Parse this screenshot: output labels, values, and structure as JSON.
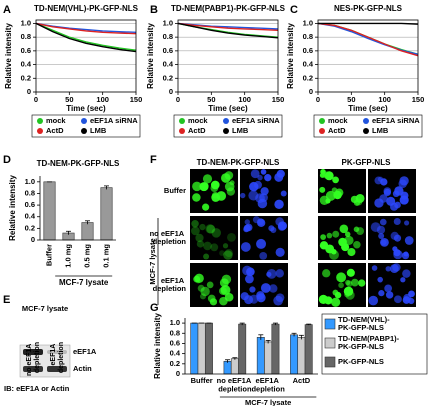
{
  "chart_data": [
    {
      "type": "line",
      "panel": "A",
      "title": "TD-NEM(VHL)-PK-GFP-NLS",
      "xlabel": "Time (sec)",
      "ylabel": "Relative intensity",
      "x": [
        0,
        25,
        50,
        75,
        100,
        125,
        150
      ],
      "xlim": [
        0,
        150
      ],
      "xticks": [
        0,
        50,
        100,
        150
      ],
      "ylim": [
        0,
        1.05
      ],
      "yticks": [
        0,
        0.2,
        0.4,
        0.6,
        0.8,
        {
          "value": 1,
          "label": "1.0"
        }
      ],
      "grid": true,
      "legend": "bottom",
      "series": [
        {
          "name": "mock",
          "color": "#22c422",
          "values": [
            1.0,
            0.9,
            0.8,
            0.73,
            0.68,
            0.64,
            0.61
          ]
        },
        {
          "name": "eEF1A siRNA",
          "color": "#2255dd",
          "values": [
            1.0,
            0.96,
            0.93,
            0.91,
            0.89,
            0.88,
            0.87
          ]
        },
        {
          "name": "ActD",
          "color": "#dd2222",
          "values": [
            1.0,
            0.95,
            0.92,
            0.89,
            0.87,
            0.86,
            0.85
          ]
        },
        {
          "name": "LMB",
          "color": "#000000",
          "values": [
            1.0,
            0.88,
            0.78,
            0.71,
            0.66,
            0.62,
            0.59
          ]
        }
      ]
    },
    {
      "type": "line",
      "panel": "B",
      "title": "TD-NEM(PABP1)-PK-GFP-NLS",
      "xlabel": "Time (sec)",
      "ylabel": "Relative intensity",
      "x": [
        0,
        25,
        50,
        75,
        100,
        125,
        150
      ],
      "xlim": [
        0,
        150
      ],
      "xticks": [
        0,
        50,
        100,
        150
      ],
      "ylim": [
        0,
        1.05
      ],
      "yticks": [
        0,
        0.2,
        0.4,
        0.6,
        0.8,
        {
          "value": 1,
          "label": "1.0"
        }
      ],
      "grid": true,
      "legend": "bottom",
      "series": [
        {
          "name": "mock",
          "color": "#22c422",
          "values": [
            1.0,
            0.95,
            0.91,
            0.87,
            0.84,
            0.82,
            0.8
          ]
        },
        {
          "name": "eEF1A siRNA",
          "color": "#2255dd",
          "values": [
            1.0,
            0.98,
            0.96,
            0.95,
            0.94,
            0.93,
            0.92
          ]
        },
        {
          "name": "ActD",
          "color": "#dd2222",
          "values": [
            1.0,
            0.97,
            0.95,
            0.93,
            0.92,
            0.91,
            0.9
          ]
        },
        {
          "name": "LMB",
          "color": "#000000",
          "values": [
            1.0,
            0.95,
            0.9,
            0.86,
            0.83,
            0.81,
            0.79
          ]
        }
      ]
    },
    {
      "type": "line",
      "panel": "C",
      "title": "NES-PK-GFP-NLS",
      "xlabel": "Time (sec)",
      "ylabel": "Relative intensity",
      "x": [
        0,
        25,
        50,
        75,
        100,
        125,
        150
      ],
      "xlim": [
        0,
        150
      ],
      "xticks": [
        0,
        50,
        100,
        150
      ],
      "ylim": [
        0,
        1.05
      ],
      "yticks": [
        0,
        0.2,
        0.4,
        0.6,
        0.8,
        {
          "value": 1,
          "label": "1.0"
        }
      ],
      "grid": true,
      "legend": "bottom",
      "series": [
        {
          "name": "mock",
          "color": "#22c422",
          "values": [
            1.0,
            0.97,
            0.9,
            0.8,
            0.7,
            0.62,
            0.55
          ]
        },
        {
          "name": "eEF1A siRNA",
          "color": "#2255dd",
          "values": [
            1.0,
            0.96,
            0.88,
            0.78,
            0.69,
            0.61,
            0.55
          ]
        },
        {
          "name": "ActD",
          "color": "#dd2222",
          "values": [
            1.0,
            0.97,
            0.9,
            0.8,
            0.7,
            0.6,
            0.53
          ]
        },
        {
          "name": "LMB",
          "color": "#000000",
          "values": [
            1.0,
            1.0,
            1.0,
            1.0,
            1.0,
            1.0,
            0.99
          ]
        }
      ]
    },
    {
      "type": "bar",
      "panel": "D",
      "title": "TD-NEM-PK-GFP-NLS",
      "ylabel": "Relative intensity",
      "categories": [
        "Buffer",
        "1.0 mg",
        "0.5 mg",
        "0.1 mg"
      ],
      "values": [
        1.0,
        0.12,
        0.3,
        0.9
      ],
      "errors": [
        0,
        0.03,
        0.03,
        0.03
      ],
      "color": "#999999",
      "group_label": "MCF-7 lysate",
      "ylim": [
        0,
        1.1
      ],
      "yticks": [
        0,
        0.2,
        0.4,
        0.6,
        0.8,
        {
          "value": 1,
          "label": "1.0"
        }
      ]
    },
    {
      "type": "grouped_bar",
      "panel": "G",
      "ylabel": "Relative intensity",
      "categories": [
        "Buffer",
        "no eEF1A depletion",
        "eEF1A depletion",
        "ActD"
      ],
      "group_label": "MCF-7 lysate",
      "legend": "right",
      "ylim": [
        0,
        1.1
      ],
      "yticks": [
        0,
        0.2,
        0.4,
        0.6,
        0.8,
        {
          "value": 1,
          "label": "1.0"
        }
      ],
      "series": [
        {
          "name": "TD-NEM(VHL)-PK-GFP-NLS",
          "color": "#3399ff",
          "values": [
            1.0,
            0.25,
            0.72,
            0.77
          ],
          "errors": [
            0,
            0.03,
            0.05,
            0.03
          ]
        },
        {
          "name": "TD-NEM(PABP1)-PK-GFP-NLS",
          "color": "#cccccc",
          "values": [
            1.0,
            0.3,
            0.63,
            0.72
          ],
          "errors": [
            0,
            0.02,
            0.03,
            0.04
          ]
        },
        {
          "name": "PK-GFP-NLS",
          "color": "#666666",
          "values": [
            1.0,
            0.98,
            0.98,
            0.97
          ],
          "errors": [
            0,
            0.02,
            0.02,
            0.01
          ]
        }
      ]
    }
  ],
  "blot": {
    "panel": "E",
    "title": "MCF-7 lysate",
    "lanes": [
      "no eEF1A depletion",
      "eEF1A depletion"
    ],
    "bands": [
      "eEF1A",
      "Actin"
    ],
    "caption": "IB: eEF1A or Actin"
  },
  "micrographs": {
    "panel": "F",
    "columns": [
      "TD-NEM-PK-GFP-NLS",
      "PK-GFP-NLS"
    ],
    "rows": [
      "Buffer",
      "no eEF1A depletion",
      "eEF1A depletion"
    ],
    "group_label": "MCF-7 lysate"
  }
}
